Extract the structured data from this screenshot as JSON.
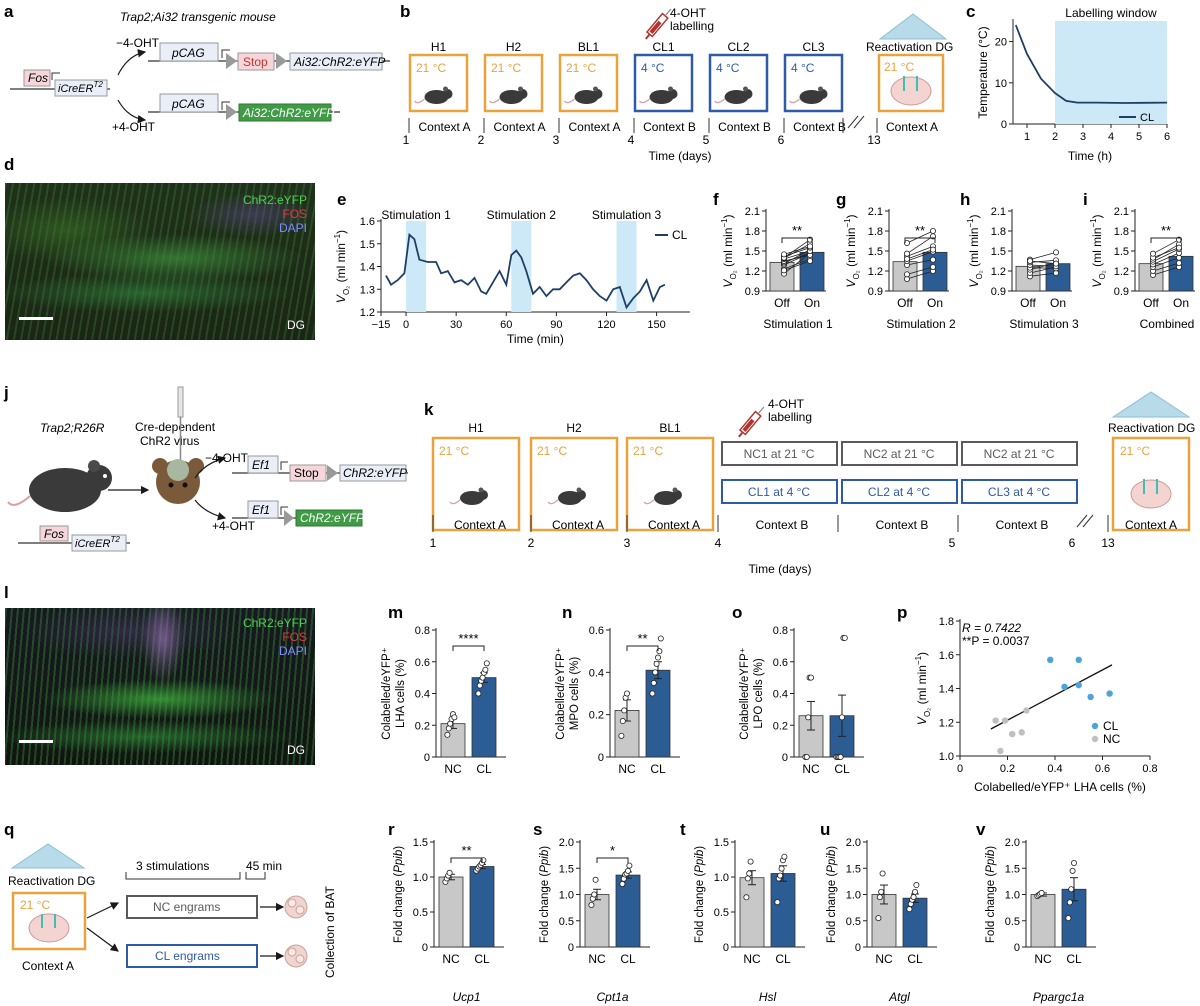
{
  "panels": {
    "a": "a",
    "b": "b",
    "c": "c",
    "d": "d",
    "e": "e",
    "f": "f",
    "g": "g",
    "h": "h",
    "i": "i",
    "j": "j",
    "k": "k",
    "l": "l",
    "m": "m",
    "n": "n",
    "o": "o",
    "p": "p",
    "q": "q",
    "r": "r",
    "s": "s",
    "t": "t",
    "u": "u",
    "v": "v"
  },
  "panel_a": {
    "title": "Trap2;Ai32 transgenic mouse",
    "fos": "Fos",
    "icreer": "iCreER",
    "t2": "T2",
    "minus_ohtt": "−4-OHT",
    "plus_oht": "+4-OHT",
    "pcag": "pCAG",
    "stop": "Stop",
    "construct1": "Ai32:ChR2:eYFP",
    "construct2": "Ai32:ChR2:eYFP"
  },
  "panel_b": {
    "labelling": "4-OHT\nlabelling",
    "labelling_line1": "4-OHT",
    "labelling_line2": "labelling",
    "boxes": [
      {
        "name": "H1",
        "temp": "21 °C",
        "context": "Context A",
        "day": "1",
        "type": "warm"
      },
      {
        "name": "H2",
        "temp": "21 °C",
        "context": "Context A",
        "day": "2",
        "type": "warm"
      },
      {
        "name": "BL1",
        "temp": "21 °C",
        "context": "Context A",
        "day": "3",
        "type": "warm"
      },
      {
        "name": "CL1",
        "temp": "4 °C",
        "context": "Context B",
        "day": "4",
        "type": "cold"
      },
      {
        "name": "CL2",
        "temp": "4 °C",
        "context": "Context B",
        "day": "5",
        "type": "cold"
      },
      {
        "name": "CL3",
        "temp": "4 °C",
        "context": "Context B",
        "day": "6",
        "type": "cold"
      }
    ],
    "reactivation": "Reactivation DG",
    "reactivation_temp": "21 °C",
    "reactivation_context": "Context A",
    "reactivation_day": "13",
    "xlabel": "Time (days)"
  },
  "panel_j": {
    "mouse_label": "Trap2;R26R",
    "virus_line1": "Cre-dependent",
    "virus_line2": "ChR2 virus",
    "fos": "Fos",
    "icreer": "iCreER",
    "t2": "T2",
    "minus_ohtt": "−4-OHT",
    "plus_oht": "+4-OHT",
    "ef1": "Ef1",
    "stop": "Stop",
    "construct1": "ChR2:eYFP",
    "construct2": "ChR2:eYFP"
  },
  "panel_k": {
    "labelling_line1": "4-OHT",
    "labelling_line2": "labelling",
    "warm_boxes": [
      {
        "name": "H1",
        "temp": "21 °C",
        "context": "Context A",
        "day": "1"
      },
      {
        "name": "H2",
        "temp": "21 °C",
        "context": "Context A",
        "day": "2"
      },
      {
        "name": "BL1",
        "temp": "21 °C",
        "context": "Context A",
        "day": "3"
      }
    ],
    "pair_boxes": [
      {
        "nc": "NC1 at 21 °C",
        "cl": "CL1 at 4 °C",
        "context": "Context B",
        "day": "4"
      },
      {
        "nc": "NC2 at 21 °C",
        "cl": "CL2 at 4 °C",
        "context": "Context B",
        "day": "5"
      },
      {
        "nc": "NC2 at 21 °C",
        "cl": "CL3 at 4 °C",
        "context": "Context B",
        "day": "6"
      }
    ],
    "reactivation": "Reactivation DG",
    "reactivation_temp": "21 °C",
    "reactivation_context": "Context A",
    "reactivation_day": "13",
    "xlabel": "Time (days)"
  },
  "panel_q": {
    "reactivation": "Reactivation DG",
    "temp": "21 °C",
    "context": "Context A",
    "stims": "3 stimulations",
    "wait": "45 min",
    "nc": "NC engrams",
    "cl": "CL engrams",
    "collection": "Collection of BAT"
  },
  "micro_d": {
    "ch1": "ChR2:eYFP",
    "ch2": "FOS",
    "ch3": "DAPI",
    "region": "DG"
  },
  "micro_l": {
    "ch1": "ChR2:eYFP",
    "ch2": "FOS",
    "ch3": "DAPI",
    "region": "DG"
  },
  "colors": {
    "warm": "#e8a33d",
    "cold": "#2f5aa8",
    "gray_box": "#5a5a5a",
    "nc_fill": "#c8c8c8",
    "cl_fill": "#2b5c94",
    "line": "#1e3f66",
    "shade": "#cde8f7",
    "cl_point": "#4ea3dc",
    "nc_point": "#c0c0c0"
  },
  "chart_data": [
    {
      "id": "c",
      "type": "line",
      "xlabel": "Time (h)",
      "ylabel": "Temperature (°C)",
      "xlim": [
        0.5,
        6
      ],
      "ylim": [
        0,
        25
      ],
      "xticks": [
        1,
        2,
        3,
        4,
        5,
        6
      ],
      "yticks": [
        0,
        10,
        20
      ],
      "shade": [
        2,
        6
      ],
      "shade_label": "Labelling window",
      "series": [
        {
          "name": "CL",
          "x": [
            0.6,
            1.0,
            1.5,
            2.0,
            2.4,
            2.8,
            3.5,
            4.5,
            6.0
          ],
          "y": [
            24,
            17,
            11,
            7.5,
            5.6,
            5.2,
            5.2,
            5.1,
            5.2
          ]
        }
      ]
    },
    {
      "id": "e",
      "type": "line",
      "xlabel": "Time (min)",
      "ylabel": "Vₒ₂ (ml min⁻¹)",
      "ylabel_main": "V",
      "ylabel_sub": "O₂",
      "ylabel_unit": " (ml min",
      "ylabel_sup": "−1",
      "ylabel_close": ")",
      "xlim": [
        -15,
        170
      ],
      "ylim": [
        1.2,
        1.6
      ],
      "xticks": [
        -15,
        0,
        30,
        60,
        90,
        120,
        150
      ],
      "yticks": [
        1.2,
        1.3,
        1.4,
        1.5,
        1.6
      ],
      "xtick_labels": [
        "−15",
        "0",
        "30",
        "60",
        "90",
        "120",
        "150"
      ],
      "shades": [
        [
          0,
          12,
          "Stimulation 1"
        ],
        [
          63,
          75,
          "Stimulation 2"
        ],
        [
          126,
          138,
          "Stimulation 3"
        ]
      ],
      "series": [
        {
          "name": "CL",
          "x": [
            -12,
            -9,
            -5,
            -1,
            2,
            5,
            8,
            13,
            18,
            21,
            25,
            29,
            33,
            37,
            41,
            45,
            48,
            52,
            56,
            60,
            63,
            66,
            69,
            72,
            76,
            80,
            84,
            88,
            92,
            96,
            100,
            104,
            108,
            112,
            116,
            120,
            124,
            128,
            132,
            136,
            140,
            144,
            148,
            152,
            155
          ],
          "y": [
            1.36,
            1.32,
            1.34,
            1.37,
            1.54,
            1.52,
            1.43,
            1.42,
            1.42,
            1.37,
            1.38,
            1.33,
            1.34,
            1.32,
            1.35,
            1.29,
            1.28,
            1.33,
            1.38,
            1.32,
            1.45,
            1.47,
            1.44,
            1.38,
            1.28,
            1.31,
            1.27,
            1.3,
            1.3,
            1.33,
            1.36,
            1.37,
            1.34,
            1.3,
            1.27,
            1.25,
            1.3,
            1.31,
            1.22,
            1.26,
            1.29,
            1.34,
            1.25,
            1.31,
            1.32
          ]
        }
      ]
    },
    {
      "id": "f",
      "type": "bar",
      "categories": [
        "Off",
        "On"
      ],
      "values": [
        1.33,
        1.48
      ],
      "xlabel": "Stimulation 1",
      "ylim": [
        0.9,
        2.1
      ],
      "yticks": [
        0.9,
        1.2,
        1.5,
        1.8,
        2.1
      ],
      "sig": "**",
      "pairs": [
        [
          1.16,
          1.47
        ],
        [
          1.23,
          1.38
        ],
        [
          1.29,
          1.47
        ],
        [
          1.31,
          1.52
        ],
        [
          1.33,
          1.47
        ],
        [
          1.35,
          1.44
        ],
        [
          1.38,
          1.5
        ],
        [
          1.39,
          1.61
        ],
        [
          1.42,
          1.55
        ],
        [
          1.4,
          1.67
        ],
        [
          1.21,
          1.35
        ],
        [
          1.45,
          1.57
        ]
      ]
    },
    {
      "id": "g",
      "type": "bar",
      "categories": [
        "Off",
        "On"
      ],
      "values": [
        1.34,
        1.48
      ],
      "xlabel": "Stimulation 2",
      "ylim": [
        0.9,
        2.1
      ],
      "yticks": [
        0.9,
        1.2,
        1.5,
        1.8,
        2.1
      ],
      "sig": "**",
      "pairs": [
        [
          1.08,
          1.2
        ],
        [
          1.15,
          1.26
        ],
        [
          1.29,
          1.37
        ],
        [
          1.35,
          1.49
        ],
        [
          1.42,
          1.57
        ],
        [
          1.38,
          1.52
        ],
        [
          1.46,
          1.72
        ],
        [
          1.62,
          1.8
        ]
      ]
    },
    {
      "id": "h",
      "type": "bar",
      "categories": [
        "Off",
        "On"
      ],
      "values": [
        1.27,
        1.31
      ],
      "xlabel": "Stimulation 3",
      "ylim": [
        0.9,
        2.1
      ],
      "yticks": [
        0.9,
        1.2,
        1.5,
        1.8,
        2.1
      ],
      "sig": "",
      "pairs": [
        [
          1.12,
          1.17
        ],
        [
          1.17,
          1.26
        ],
        [
          1.22,
          1.32
        ],
        [
          1.25,
          1.24
        ],
        [
          1.29,
          1.27
        ],
        [
          1.33,
          1.36
        ],
        [
          1.37,
          1.48
        ],
        [
          1.35,
          1.31
        ]
      ]
    },
    {
      "id": "i",
      "type": "bar",
      "categories": [
        "Off",
        "On"
      ],
      "values": [
        1.31,
        1.42
      ],
      "xlabel": "Combined",
      "ylim": [
        0.9,
        2.1
      ],
      "yticks": [
        0.9,
        1.2,
        1.5,
        1.8,
        2.1
      ],
      "sig": "**",
      "pairs": [
        [
          1.14,
          1.26
        ],
        [
          1.2,
          1.32
        ],
        [
          1.26,
          1.4
        ],
        [
          1.3,
          1.47
        ],
        [
          1.34,
          1.53
        ],
        [
          1.37,
          1.6
        ],
        [
          1.4,
          1.55
        ],
        [
          1.46,
          1.67
        ]
      ]
    },
    {
      "id": "m",
      "type": "bar",
      "categories": [
        "NC",
        "CL"
      ],
      "values": [
        0.21,
        0.5
      ],
      "ylabel_lines": [
        "Colabelled/eYFP⁺",
        "LHA cells (%)"
      ],
      "ylim": [
        0,
        0.8
      ],
      "yticks": [
        0,
        0.2,
        0.4,
        0.6,
        0.8
      ],
      "ytick_labels": [
        "0",
        "0.2",
        "0.4",
        "0.6",
        "0.8"
      ],
      "err": [
        0.03,
        0.03
      ],
      "sig": "****",
      "points": [
        [
          0.14,
          0.18,
          0.21,
          0.24,
          0.27,
          0.25
        ],
        [
          0.4,
          0.45,
          0.48,
          0.5,
          0.53,
          0.55,
          0.59
        ]
      ]
    },
    {
      "id": "n",
      "type": "bar",
      "categories": [
        "NC",
        "CL"
      ],
      "values": [
        0.22,
        0.41
      ],
      "ylabel_lines": [
        "Colabelled/eYFP⁺",
        "MPO cells (%)"
      ],
      "ylim": [
        0,
        0.6
      ],
      "yticks": [
        0,
        0.2,
        0.4,
        0.6
      ],
      "ytick_labels": [
        "0",
        "0.2",
        "0.4",
        "0.6"
      ],
      "err": [
        0.05,
        0.04
      ],
      "sig": "**",
      "points": [
        [
          0.1,
          0.17,
          0.22,
          0.28,
          0.3
        ],
        [
          0.3,
          0.35,
          0.4,
          0.44,
          0.47,
          0.5,
          0.56
        ]
      ]
    },
    {
      "id": "o",
      "type": "bar",
      "categories": [
        "NC",
        "CL"
      ],
      "values": [
        0.26,
        0.26
      ],
      "ylabel_lines": [
        "Colabelled/eYFP⁺",
        "LPO cells (%)"
      ],
      "ylim": [
        0,
        0.8
      ],
      "yticks": [
        0,
        0.2,
        0.4,
        0.6,
        0.8
      ],
      "ytick_labels": [
        "0",
        "0.2",
        "0.4",
        "0.6",
        "0.8"
      ],
      "err": [
        0.09,
        0.13
      ],
      "sig": "",
      "points": [
        [
          0.0,
          0.0,
          0.25,
          0.5,
          0.5
        ],
        [
          0.0,
          0.0,
          0.0,
          0.0,
          0.25,
          0.75,
          0.75
        ]
      ]
    },
    {
      "id": "p",
      "type": "scatter",
      "xlabel": "Colabelled/eYFP⁺ LHA cells (%)",
      "ylim": [
        1.0,
        1.8
      ],
      "xlim": [
        0,
        0.8
      ],
      "xticks": [
        0,
        0.2,
        0.4,
        0.6,
        0.8
      ],
      "yticks": [
        1.0,
        1.2,
        1.4,
        1.6,
        1.8
      ],
      "xtick_labels": [
        "0",
        "0.2",
        "0.4",
        "0.6",
        "0.8"
      ],
      "ytick_labels": [
        "1.0",
        "1.2",
        "1.4",
        "1.6",
        "1.8"
      ],
      "r_text": "R = 0.7422",
      "p_text": "**P = 0.0037",
      "fit": [
        [
          0.13,
          1.16
        ],
        [
          0.64,
          1.54
        ]
      ],
      "series": [
        {
          "name": "CL",
          "x": [
            0.38,
            0.44,
            0.5,
            0.5,
            0.55,
            0.63
          ],
          "y": [
            1.57,
            1.41,
            1.57,
            1.42,
            1.35,
            1.37
          ]
        },
        {
          "name": "NC",
          "x": [
            0.15,
            0.17,
            0.19,
            0.22,
            0.26,
            0.28
          ],
          "y": [
            1.21,
            1.03,
            1.21,
            1.13,
            1.14,
            1.27
          ]
        }
      ]
    },
    {
      "id": "r",
      "type": "bar",
      "categories": [
        "NC",
        "CL"
      ],
      "values": [
        1.0,
        1.15
      ],
      "gene": "Ucp1",
      "ylim": [
        0,
        1.5
      ],
      "yticks": [
        0,
        0.5,
        1.0,
        1.5
      ],
      "ytick_labels": [
        "0",
        "0.5",
        "1.0",
        "1.5"
      ],
      "err": [
        0.04,
        0.03
      ],
      "sig": "**",
      "points": [
        [
          0.93,
          0.98,
          1.02,
          1.06
        ],
        [
          1.09,
          1.12,
          1.15,
          1.17,
          1.2,
          1.24
        ]
      ]
    },
    {
      "id": "s",
      "type": "bar",
      "categories": [
        "NC",
        "CL"
      ],
      "values": [
        1.0,
        1.37
      ],
      "gene": "Cpt1a",
      "ylim": [
        0,
        2.0
      ],
      "yticks": [
        0,
        0.5,
        1.0,
        1.5,
        2.0
      ],
      "ytick_labels": [
        "0",
        "0.5",
        "1.0",
        "1.5",
        "2.0"
      ],
      "err": [
        0.1,
        0.06
      ],
      "sig": "*",
      "points": [
        [
          0.8,
          0.92,
          1.0,
          1.28
        ],
        [
          1.2,
          1.3,
          1.38,
          1.4,
          1.45,
          1.55
        ]
      ]
    },
    {
      "id": "t",
      "type": "bar",
      "categories": [
        "NC",
        "CL"
      ],
      "values": [
        0.99,
        1.05
      ],
      "gene": "Hsl",
      "ylim": [
        0,
        1.5
      ],
      "yticks": [
        0,
        0.5,
        1.0,
        1.5
      ],
      "ytick_labels": [
        "0",
        "0.5",
        "1.0",
        "1.5"
      ],
      "err": [
        0.1,
        0.11
      ],
      "sig": "",
      "points": [
        [
          0.71,
          0.98,
          1.05,
          1.22
        ],
        [
          0.64,
          0.98,
          1.02,
          1.12,
          1.24,
          1.29
        ]
      ]
    },
    {
      "id": "u",
      "type": "bar",
      "categories": [
        "NC",
        "CL"
      ],
      "values": [
        1.0,
        0.93
      ],
      "gene": "Atgl",
      "ylim": [
        0,
        2.0
      ],
      "yticks": [
        0,
        0.5,
        1.0,
        1.5,
        2.0
      ],
      "ytick_labels": [
        "0",
        "0.5",
        "1.0",
        "1.5",
        "2.0"
      ],
      "err": [
        0.18,
        0.08
      ],
      "sig": "",
      "points": [
        [
          0.55,
          0.95,
          1.05,
          1.4
        ],
        [
          0.72,
          0.82,
          0.9,
          0.95,
          1.05,
          1.18
        ]
      ]
    },
    {
      "id": "v",
      "type": "bar",
      "categories": [
        "NC",
        "CL"
      ],
      "values": [
        1.0,
        1.1
      ],
      "gene": "Ppargc1a",
      "ylim": [
        0,
        2.0
      ],
      "yticks": [
        0,
        0.5,
        1.0,
        1.5,
        2.0
      ],
      "ytick_labels": [
        "0",
        "0.5",
        "1.0",
        "1.5",
        "2.0"
      ],
      "err": [
        0.03,
        0.22
      ],
      "sig": "",
      "points": [
        [
          0.97,
          0.99,
          1.01,
          1.03
        ],
        [
          0.55,
          0.85,
          1.1,
          1.45,
          1.6
        ]
      ]
    }
  ],
  "fold_ylabel_pre": "Fold change (",
  "fold_ylabel_gene": "Ppib",
  "fold_ylabel_post": ")",
  "vo2_label": {
    "main": "V",
    "sub": "O₂",
    "unit": " (ml min",
    "sup": "−1",
    "close": ")"
  }
}
